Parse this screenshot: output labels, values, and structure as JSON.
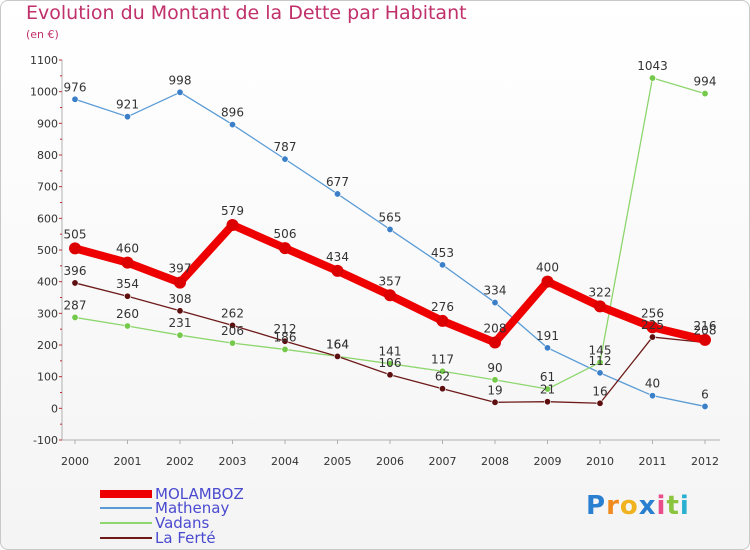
{
  "title": "Evolution du Montant de la Dette par Habitant",
  "subtitle": "(en €)",
  "logo": {
    "text": "Proxiti",
    "letters": [
      "P",
      "r",
      "o",
      "x",
      "i",
      "t",
      "i"
    ],
    "colors": [
      "#2a7fd0",
      "#f08a1e",
      "#f0b21e",
      "#2a7fd0",
      "#e94e8a",
      "#8bc43f",
      "#2ab0d0"
    ]
  },
  "chart_data": {
    "type": "line",
    "title": "Evolution du Montant de la Dette par Habitant",
    "ylabel": "(en €)",
    "x": [
      "2000",
      "2001",
      "2002",
      "2003",
      "2004",
      "2005",
      "2006",
      "2007",
      "2008",
      "2009",
      "2010",
      "2011",
      "2012"
    ],
    "ylim": [
      -100,
      1100
    ],
    "yticks": [
      "-100",
      "0",
      "100",
      "200",
      "300",
      "400",
      "500",
      "600",
      "700",
      "800",
      "900",
      "1000",
      "1100"
    ],
    "grid": "off",
    "legend": "bottom-left",
    "series": [
      {
        "name": "MOLAMBOZ",
        "color": "#ee0000",
        "values": [
          505,
          460,
          397,
          579,
          506,
          434,
          357,
          276,
          208,
          400,
          322,
          256,
          216
        ]
      },
      {
        "name": "Mathenay",
        "color": "#5a9bd5",
        "values": [
          976,
          921,
          998,
          896,
          787,
          677,
          565,
          453,
          334,
          191,
          112,
          40,
          6
        ]
      },
      {
        "name": "Vadans",
        "color": "#8ed66e",
        "values": [
          287,
          260,
          231,
          206,
          186,
          164,
          141,
          117,
          90,
          61,
          145,
          1043,
          994
        ]
      },
      {
        "name": "La Ferté",
        "color": "#6e1a1a",
        "values": [
          396,
          354,
          308,
          262,
          212,
          164,
          106,
          62,
          19,
          21,
          16,
          225,
          208
        ]
      }
    ]
  }
}
